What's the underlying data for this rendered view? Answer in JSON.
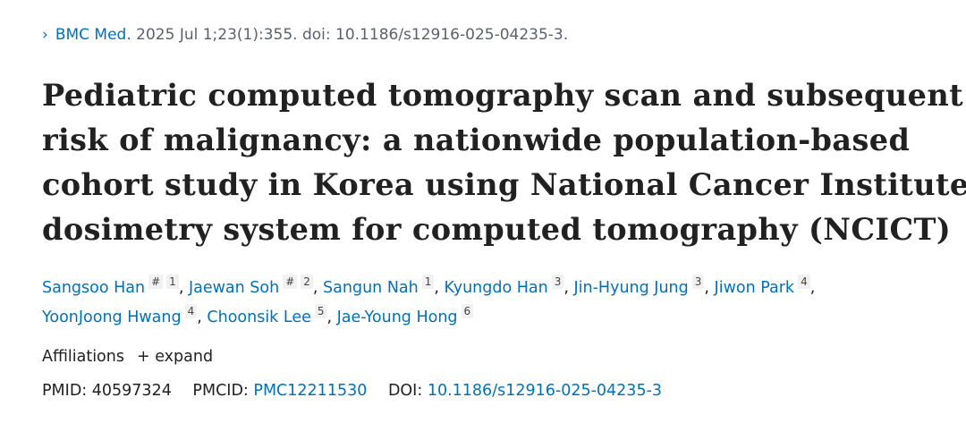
{
  "citation": {
    "journal": "BMC Med.",
    "details": "2025 Jul 1;23(1):355. doi: 10.1186/s12916-025-04235-3."
  },
  "title_lines": [
    "Pediatric computed tomography scan and subsequent",
    "risk of malignancy: a nationwide population-based",
    "cohort study in Korea using National Cancer Institute",
    "dosimetry system for computed tomography (NCICT)"
  ],
  "authors": [
    {
      "name": "Sangsoo Han",
      "marks": [
        "#",
        "1"
      ]
    },
    {
      "name": "Jaewan Soh",
      "marks": [
        "#",
        "2"
      ]
    },
    {
      "name": "Sangun Nah",
      "marks": [
        "1"
      ]
    },
    {
      "name": "Kyungdo Han",
      "marks": [
        "3"
      ]
    },
    {
      "name": "Jin-Hyung Jung",
      "marks": [
        "3"
      ]
    },
    {
      "name": "Jiwon Park",
      "marks": [
        "4"
      ]
    },
    {
      "name": "YoonJoong Hwang",
      "marks": [
        "4"
      ]
    },
    {
      "name": "Choonsik Lee",
      "marks": [
        "5"
      ]
    },
    {
      "name": "Jae-Young Hong",
      "marks": [
        "6"
      ]
    }
  ],
  "affiliations": {
    "label": "Affiliations",
    "expand": "+ expand"
  },
  "ids": {
    "pmid_label": "PMID:",
    "pmid": "40597324",
    "pmcid_label": "PMCID:",
    "pmcid": "PMC12211530",
    "doi_label": "DOI:",
    "doi": "10.1186/s12916-025-04235-3"
  },
  "colors": {
    "link": "#0071bc",
    "text": "#212121"
  }
}
